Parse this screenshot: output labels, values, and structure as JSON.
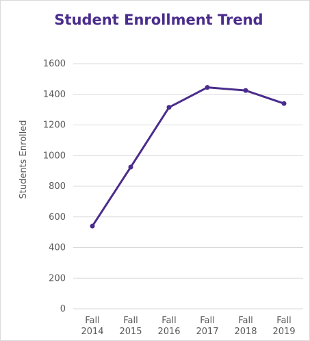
{
  "chart_data": {
    "type": "line",
    "title": "Student Enrollment Trend",
    "xlabel": "",
    "ylabel": "Students Enrolled",
    "categories": [
      [
        "Fall",
        "2014"
      ],
      [
        "Fall",
        "2015"
      ],
      [
        "Fall",
        "2016"
      ],
      [
        "Fall",
        "2017"
      ],
      [
        "Fall",
        "2018"
      ],
      [
        "Fall",
        "2019"
      ]
    ],
    "values": [
      540,
      925,
      1315,
      1445,
      1425,
      1340
    ],
    "ylim": [
      0,
      1600
    ],
    "yticks": [
      "0",
      "200",
      "400",
      "600",
      "800",
      "1000",
      "1200",
      "1400",
      "1600"
    ],
    "grid": true,
    "line_color": "#4a2c8c",
    "grid_color": "#d9d9d9"
  }
}
